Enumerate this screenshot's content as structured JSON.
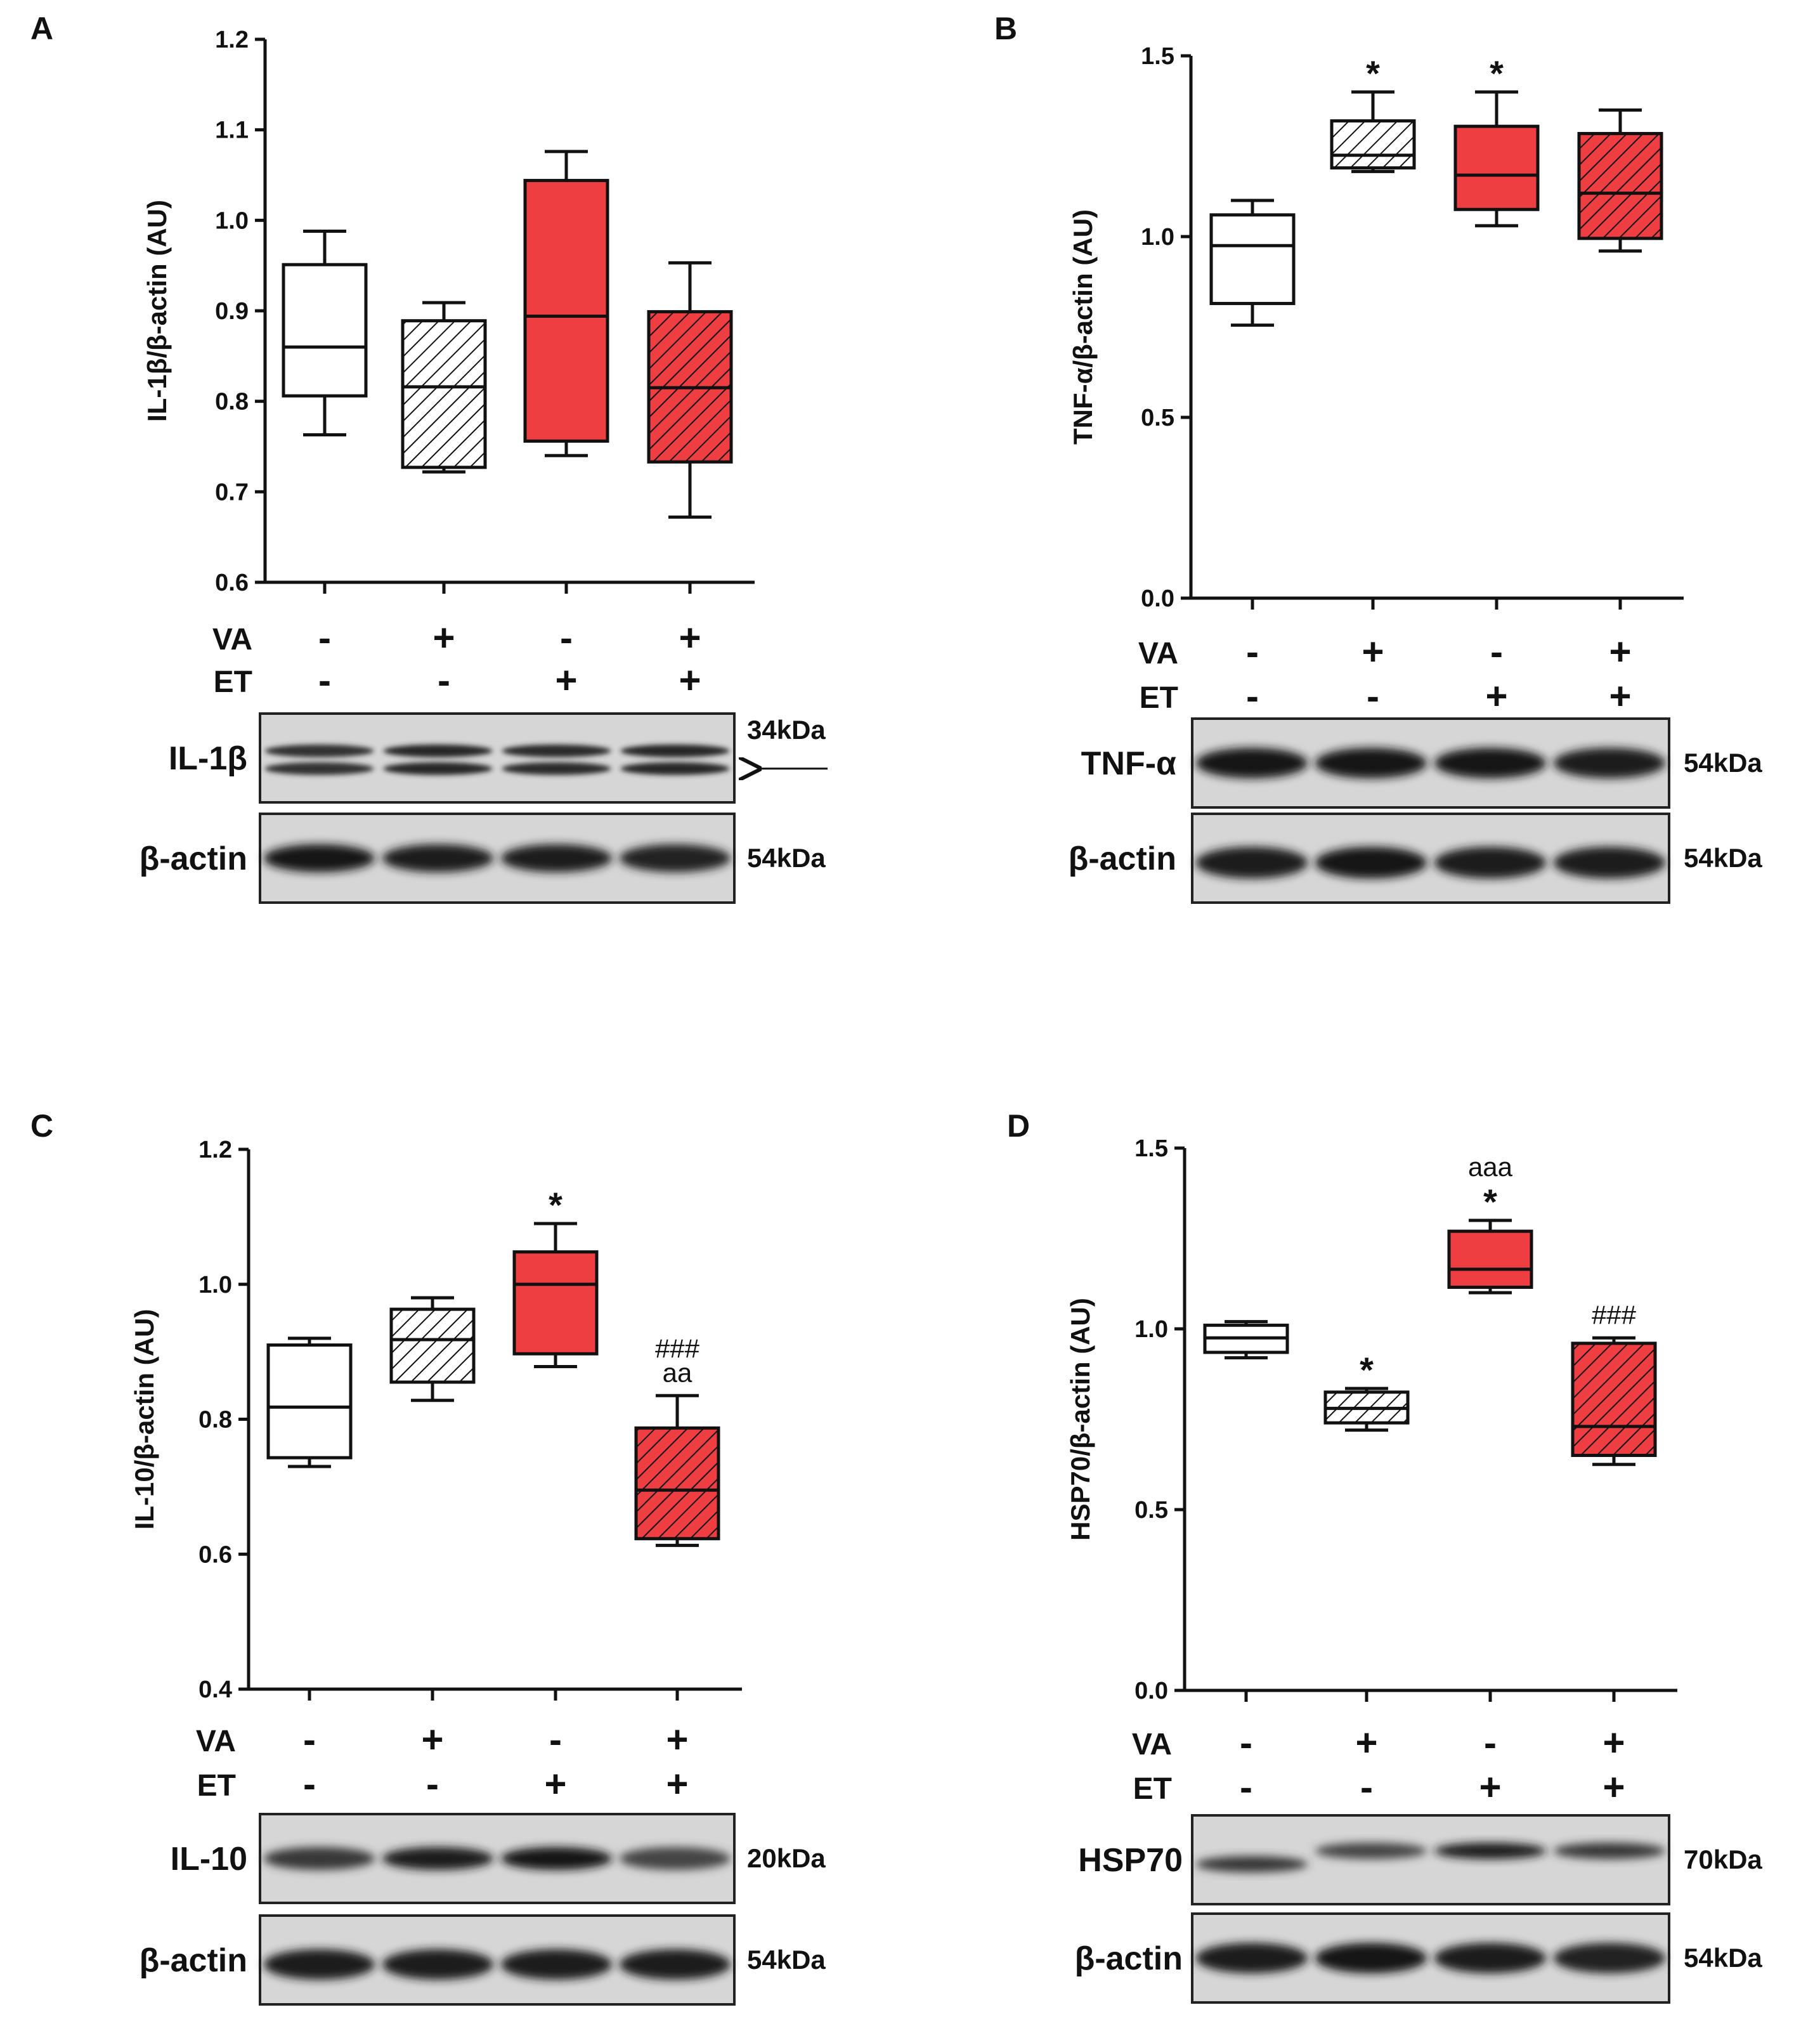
{
  "colors": {
    "open": "#ffffff",
    "red": "#ee3e42",
    "stroke": "#111111"
  },
  "groups": [
    {
      "style": "open",
      "hatch": false
    },
    {
      "style": "open",
      "hatch": true
    },
    {
      "style": "red",
      "hatch": false
    },
    {
      "style": "red",
      "hatch": true
    }
  ],
  "chart_data": [
    {
      "panel": "A",
      "type": "boxplot",
      "ylabel": "IL-1β/β-actin (AU)",
      "ylim": [
        0.6,
        1.2
      ],
      "yticks": [
        "0.6",
        "0.7",
        "0.8",
        "0.9",
        "1.0",
        "1.1",
        "1.2"
      ],
      "boxes": [
        {
          "min": 0.763,
          "q1": 0.806,
          "median": 0.86,
          "q3": 0.951,
          "max": 0.988,
          "sig": []
        },
        {
          "min": 0.722,
          "q1": 0.727,
          "median": 0.816,
          "q3": 0.889,
          "max": 0.909,
          "sig": []
        },
        {
          "min": 0.74,
          "q1": 0.756,
          "median": 0.894,
          "q3": 1.044,
          "max": 1.076,
          "sig": []
        },
        {
          "min": 0.672,
          "q1": 0.733,
          "median": 0.815,
          "q3": 0.899,
          "max": 0.953,
          "sig": []
        }
      ],
      "va": [
        "-",
        "+",
        "-",
        "+"
      ],
      "et": [
        "-",
        "-",
        "+",
        "+"
      ],
      "blots": [
        {
          "name": "IL-1β",
          "kda": "34kDa",
          "arrow": true
        },
        {
          "name": "β-actin",
          "kda": "54kDa"
        }
      ]
    },
    {
      "panel": "B",
      "type": "boxplot",
      "ylabel": "TNF-α/β-actin (AU)",
      "ylim": [
        0.0,
        1.5
      ],
      "yticks": [
        "0.0",
        "0.5",
        "1.0",
        "1.5"
      ],
      "boxes": [
        {
          "min": 0.755,
          "q1": 0.815,
          "median": 0.975,
          "q3": 1.06,
          "max": 1.1,
          "sig": []
        },
        {
          "min": 1.18,
          "q1": 1.19,
          "median": 1.225,
          "q3": 1.32,
          "max": 1.4,
          "sig": [
            "*"
          ]
        },
        {
          "min": 1.03,
          "q1": 1.075,
          "median": 1.17,
          "q3": 1.305,
          "max": 1.4,
          "sig": [
            "*"
          ]
        },
        {
          "min": 0.96,
          "q1": 0.995,
          "median": 1.12,
          "q3": 1.285,
          "max": 1.35,
          "sig": []
        }
      ],
      "va": [
        "-",
        "+",
        "-",
        "+"
      ],
      "et": [
        "-",
        "-",
        "+",
        "+"
      ],
      "blots": [
        {
          "name": "TNF-α",
          "kda": "54kDa"
        },
        {
          "name": "β-actin",
          "kda": "54kDa"
        }
      ]
    },
    {
      "panel": "C",
      "type": "boxplot",
      "ylabel": "IL-10/β-actin (AU)",
      "ylim": [
        0.4,
        1.2
      ],
      "yticks": [
        "0.4",
        "0.6",
        "0.8",
        "1.0",
        "1.2"
      ],
      "boxes": [
        {
          "min": 0.73,
          "q1": 0.743,
          "median": 0.818,
          "q3": 0.91,
          "max": 0.92,
          "sig": []
        },
        {
          "min": 0.828,
          "q1": 0.855,
          "median": 0.918,
          "q3": 0.963,
          "max": 0.98,
          "sig": []
        },
        {
          "min": 0.878,
          "q1": 0.897,
          "median": 1.0,
          "q3": 1.048,
          "max": 1.09,
          "sig": [
            "*"
          ]
        },
        {
          "min": 0.613,
          "q1": 0.623,
          "median": 0.695,
          "q3": 0.787,
          "max": 0.835,
          "sig": [
            "aa",
            "###"
          ]
        }
      ],
      "va": [
        "-",
        "+",
        "-",
        "+"
      ],
      "et": [
        "-",
        "-",
        "+",
        "+"
      ],
      "blots": [
        {
          "name": "IL-10",
          "kda": "20kDa"
        },
        {
          "name": "β-actin",
          "kda": "54kDa"
        }
      ]
    },
    {
      "panel": "D",
      "type": "boxplot",
      "ylabel": "HSP70/β-actin (AU)",
      "ylim": [
        0.0,
        1.5
      ],
      "yticks": [
        "0.0",
        "0.5",
        "1.0",
        "1.5"
      ],
      "boxes": [
        {
          "min": 0.92,
          "q1": 0.935,
          "median": 0.975,
          "q3": 1.01,
          "max": 1.02,
          "sig": []
        },
        {
          "min": 0.72,
          "q1": 0.74,
          "median": 0.78,
          "q3": 0.825,
          "max": 0.835,
          "sig": [
            "*"
          ]
        },
        {
          "min": 1.1,
          "q1": 1.115,
          "median": 1.165,
          "q3": 1.27,
          "max": 1.3,
          "sig": [
            "*",
            "aaa"
          ]
        },
        {
          "min": 0.625,
          "q1": 0.65,
          "median": 0.73,
          "q3": 0.96,
          "max": 0.975,
          "sig": [
            "###"
          ]
        }
      ],
      "va": [
        "-",
        "+",
        "-",
        "+"
      ],
      "et": [
        "-",
        "-",
        "+",
        "+"
      ],
      "blots": [
        {
          "name": "HSP70",
          "kda": "70kDa"
        },
        {
          "name": "β-actin",
          "kda": "54kDa"
        }
      ]
    }
  ],
  "row_labels": {
    "va": "VA",
    "et": "ET"
  }
}
